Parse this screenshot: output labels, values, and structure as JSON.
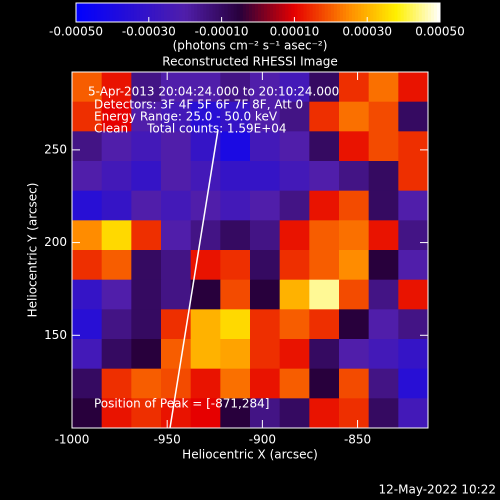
{
  "chart_data": {
    "type": "heatmap",
    "title": "Reconstructed RHESSI Image",
    "xlabel": "Heliocentric X (arcsec)",
    "ylabel": "Heliocentric Y (arcsec)",
    "colorbar_label": "(photons cm⁻² s⁻¹ asec⁻²)",
    "annotations": [
      "5-Apr-2013 20:04:24.000 to 20:10:24.000",
      "Detectors: 3F 4F 5F 6F 7F 8F, Att 0",
      "Energy Range: 25.0 - 50.0 keV",
      "Clean     Total counts: 1.59E+04"
    ],
    "peak_label": "Position of Peak = [-871,284]",
    "timestamp": "12-May-2022 10:22",
    "xlim": [
      -1000,
      -813
    ],
    "ylim": [
      100,
      292
    ],
    "xticks": [
      -1000,
      -950,
      -900,
      -850
    ],
    "yticks": [
      150,
      200,
      250
    ],
    "clim": [
      -0.0005,
      0.0005
    ],
    "cticks": [
      {
        "value": -0.0005,
        "label": "-0.00050"
      },
      {
        "value": -0.0003,
        "label": "-0.00030"
      },
      {
        "value": -0.0001,
        "label": "-0.00010"
      },
      {
        "value": 0.0001,
        "label": "0.00010"
      },
      {
        "value": 0.0003,
        "label": "0.00030"
      },
      {
        "value": 0.0005,
        "label": "0.00050"
      }
    ],
    "z": [
      [
        0.0002,
        0.00012,
        -0.00015,
        -0.0002,
        -0.0002,
        -0.00015,
        -0.0002,
        -0.00025,
        -0.0001,
        0.00015,
        0.00022,
        0.00012
      ],
      [
        0.00015,
        0.0001,
        -0.0002,
        -0.00025,
        -0.00035,
        -0.0003,
        -0.0002,
        -0.00015,
        0.00015,
        0.00022,
        0.00018,
        -0.0001
      ],
      [
        -0.00015,
        -0.0002,
        -0.00025,
        -0.0002,
        -0.0003,
        -0.0004,
        -0.00025,
        -0.0002,
        -0.0001,
        0.00012,
        0.00018,
        0.00015
      ],
      [
        -0.0002,
        -0.00025,
        -0.0003,
        -0.0002,
        -0.00025,
        -0.0003,
        -0.0003,
        -0.00025,
        -0.0002,
        -0.00015,
        -0.0001,
        0.00015
      ],
      [
        -0.00035,
        -0.0003,
        -0.0002,
        -0.00025,
        -0.0002,
        -0.00025,
        -0.0002,
        -0.00015,
        0.00012,
        0.00018,
        -0.0001,
        -0.0002
      ],
      [
        0.00025,
        0.00035,
        0.00015,
        -0.0002,
        -0.00015,
        -0.0001,
        -0.00015,
        0.00012,
        0.0002,
        0.00022,
        0.00012,
        -0.00015
      ],
      [
        0.00015,
        0.0002,
        -0.0001,
        -0.00015,
        0.00012,
        0.00015,
        -0.0001,
        0.00015,
        0.0002,
        0.00025,
        -5e-05,
        -0.0002
      ],
      [
        -0.0003,
        -0.0002,
        -0.0001,
        -0.00015,
        -5e-05,
        0.00018,
        -5e-05,
        0.0003,
        0.00045,
        0.00018,
        -0.00015,
        0.00012
      ],
      [
        -0.00035,
        -0.00015,
        -0.0001,
        0.00015,
        0.0003,
        0.00035,
        0.00015,
        0.0002,
        0.00015,
        -5e-05,
        -0.0002,
        -0.00015
      ],
      [
        -0.00025,
        -0.0001,
        -5e-05,
        0.0002,
        0.0003,
        0.00028,
        0.00015,
        0.00012,
        -0.0001,
        -0.0002,
        -0.00025,
        -0.0003
      ],
      [
        -0.0001,
        0.00015,
        0.0002,
        0.00018,
        0.00012,
        0.00022,
        0.00012,
        0.0002,
        -5e-05,
        0.00018,
        -0.00015,
        -0.00035
      ],
      [
        -5e-05,
        0.00012,
        0.00015,
        0.00012,
        0.0001,
        -5e-05,
        -0.00015,
        -0.0001,
        0.00012,
        0.00015,
        -0.0001,
        -0.00025
      ]
    ]
  }
}
